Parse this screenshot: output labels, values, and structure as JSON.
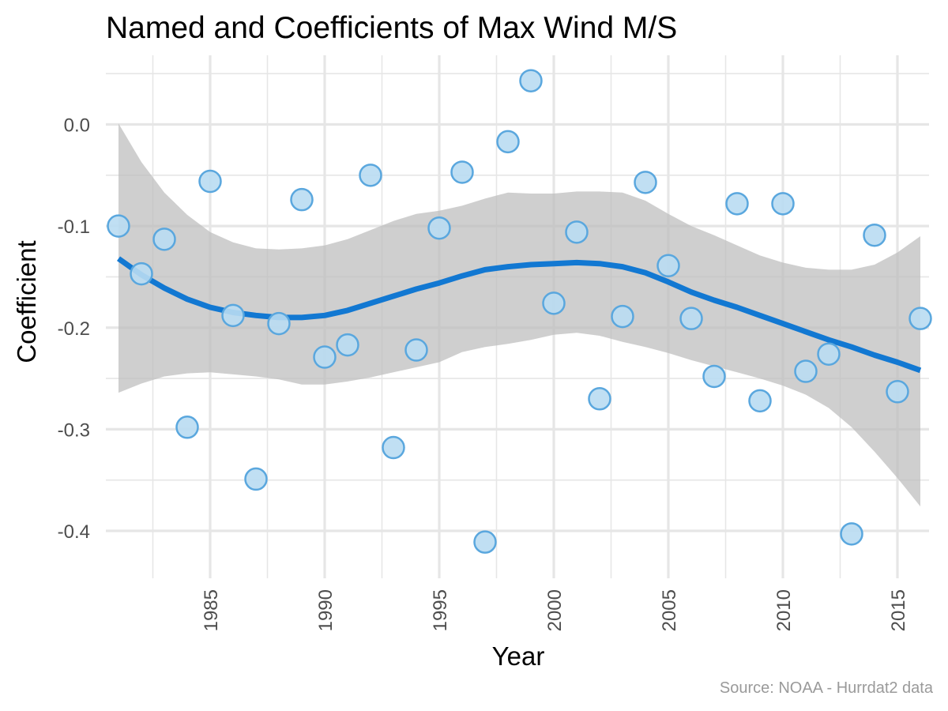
{
  "chart_data": {
    "type": "scatter",
    "title": "Named and Coefficients of Max Wind M/S",
    "xlabel": "Year",
    "ylabel": "Coefficient",
    "caption": "Source: NOAA - Hurrdat2 data",
    "xlim": [
      1980.5,
      2016.5
    ],
    "ylim": [
      -0.44,
      0.06
    ],
    "x_ticks": [
      1985,
      1990,
      1995,
      2000,
      2005,
      2010,
      2015
    ],
    "x_tick_labels": [
      "1985",
      "1990",
      "1995",
      "2000",
      "2005",
      "2010",
      "2015"
    ],
    "y_ticks": [
      0.0,
      -0.1,
      -0.2,
      -0.3,
      -0.4
    ],
    "y_tick_labels": [
      "0.0",
      "-0.1",
      "-0.2",
      "-0.3",
      "-0.4"
    ],
    "grid": true,
    "legend": "none",
    "colors": {
      "point_fill": "#b9dcf2",
      "point_stroke": "#5aa7de",
      "trend_line": "#1278d2",
      "ci_band": "#bdbdbd",
      "grid": "#e6e6e6"
    },
    "points": [
      {
        "x": 1981,
        "y": -0.1
      },
      {
        "x": 1982,
        "y": -0.147
      },
      {
        "x": 1983,
        "y": -0.113
      },
      {
        "x": 1984,
        "y": -0.298
      },
      {
        "x": 1985,
        "y": -0.056
      },
      {
        "x": 1986,
        "y": -0.188
      },
      {
        "x": 1987,
        "y": -0.349
      },
      {
        "x": 1988,
        "y": -0.196
      },
      {
        "x": 1989,
        "y": -0.074
      },
      {
        "x": 1990,
        "y": -0.229
      },
      {
        "x": 1991,
        "y": -0.217
      },
      {
        "x": 1992,
        "y": -0.05
      },
      {
        "x": 1993,
        "y": -0.318
      },
      {
        "x": 1994,
        "y": -0.222
      },
      {
        "x": 1995,
        "y": -0.102
      },
      {
        "x": 1996,
        "y": -0.047
      },
      {
        "x": 1997,
        "y": -0.411
      },
      {
        "x": 1998,
        "y": -0.017
      },
      {
        "x": 1999,
        "y": 0.043
      },
      {
        "x": 2000,
        "y": -0.176
      },
      {
        "x": 2001,
        "y": -0.106
      },
      {
        "x": 2002,
        "y": -0.27
      },
      {
        "x": 2003,
        "y": -0.189
      },
      {
        "x": 2004,
        "y": -0.057
      },
      {
        "x": 2005,
        "y": -0.139
      },
      {
        "x": 2006,
        "y": -0.191
      },
      {
        "x": 2007,
        "y": -0.248
      },
      {
        "x": 2008,
        "y": -0.078
      },
      {
        "x": 2009,
        "y": -0.272
      },
      {
        "x": 2010,
        "y": -0.078
      },
      {
        "x": 2011,
        "y": -0.243
      },
      {
        "x": 2012,
        "y": -0.226
      },
      {
        "x": 2013,
        "y": -0.403
      },
      {
        "x": 2014,
        "y": -0.109
      },
      {
        "x": 2015,
        "y": -0.263
      },
      {
        "x": 2016,
        "y": -0.191
      }
    ],
    "trend": {
      "x": [
        1981,
        1982,
        1983,
        1984,
        1985,
        1986,
        1987,
        1988,
        1989,
        1990,
        1991,
        1992,
        1993,
        1994,
        1995,
        1996,
        1997,
        1998,
        1999,
        2000,
        2001,
        2002,
        2003,
        2004,
        2005,
        2006,
        2007,
        2008,
        2009,
        2010,
        2011,
        2012,
        2013,
        2014,
        2015,
        2016
      ],
      "y": [
        -0.132,
        -0.148,
        -0.161,
        -0.172,
        -0.18,
        -0.185,
        -0.188,
        -0.19,
        -0.19,
        -0.188,
        -0.183,
        -0.176,
        -0.169,
        -0.162,
        -0.156,
        -0.149,
        -0.143,
        -0.14,
        -0.138,
        -0.137,
        -0.136,
        -0.137,
        -0.14,
        -0.146,
        -0.155,
        -0.165,
        -0.173,
        -0.18,
        -0.188,
        -0.196,
        -0.204,
        -0.212,
        -0.219,
        -0.227,
        -0.234,
        -0.242
      ],
      "upper": [
        0.001,
        -0.037,
        -0.067,
        -0.089,
        -0.106,
        -0.116,
        -0.122,
        -0.123,
        -0.122,
        -0.119,
        -0.113,
        -0.104,
        -0.095,
        -0.088,
        -0.085,
        -0.08,
        -0.073,
        -0.067,
        -0.068,
        -0.068,
        -0.066,
        -0.066,
        -0.067,
        -0.075,
        -0.088,
        -0.1,
        -0.109,
        -0.119,
        -0.129,
        -0.136,
        -0.141,
        -0.143,
        -0.143,
        -0.138,
        -0.126,
        -0.11
      ],
      "lower": [
        -0.264,
        -0.255,
        -0.248,
        -0.245,
        -0.244,
        -0.246,
        -0.248,
        -0.251,
        -0.256,
        -0.256,
        -0.253,
        -0.249,
        -0.244,
        -0.239,
        -0.234,
        -0.224,
        -0.219,
        -0.216,
        -0.212,
        -0.207,
        -0.205,
        -0.208,
        -0.214,
        -0.219,
        -0.225,
        -0.232,
        -0.238,
        -0.244,
        -0.25,
        -0.257,
        -0.266,
        -0.279,
        -0.298,
        -0.322,
        -0.348,
        -0.376
      ]
    }
  }
}
